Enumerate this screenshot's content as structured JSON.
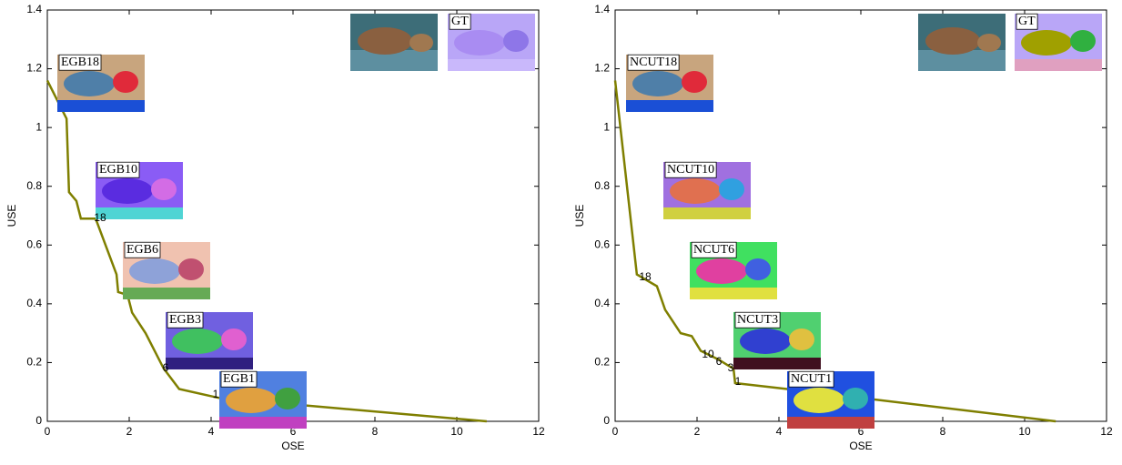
{
  "chart_data": [
    {
      "type": "line",
      "xlabel": "OSE",
      "ylabel": "USE",
      "xlim": [
        0,
        12
      ],
      "xticks": [
        0,
        2,
        4,
        6,
        8,
        10,
        12
      ],
      "ylim": [
        0,
        1.4
      ],
      "yticks": [
        0,
        0.2,
        0.4,
        0.6,
        0.8,
        1,
        1.2,
        1.4
      ],
      "x": [
        0,
        0.47,
        0.53,
        0.71,
        0.82,
        1.18,
        1.69,
        1.73,
        1.96,
        2.07,
        2.4,
        2.84,
        3.22,
        4.18,
        10.73
      ],
      "series": [
        {
          "color": "#7f7f00",
          "values": [
            1.16,
            1.03,
            0.78,
            0.75,
            0.69,
            0.69,
            0.5,
            0.44,
            0.43,
            0.37,
            0.3,
            0.18,
            0.11,
            0.08,
            0
          ]
        }
      ],
      "image_labels": [
        "GT",
        "EGB18",
        "EGB10",
        "EGB6",
        "EGB3",
        "EGB1"
      ],
      "point_labels": [
        "18",
        "6",
        "1"
      ]
    },
    {
      "type": "line",
      "xlabel": "OSE",
      "ylabel": "USE",
      "xlim": [
        0,
        12
      ],
      "xticks": [
        0,
        2,
        4,
        6,
        8,
        10,
        12
      ],
      "ylim": [
        0,
        1.4
      ],
      "yticks": [
        0,
        0.2,
        0.4,
        0.6,
        0.8,
        1,
        1.2,
        1.4
      ],
      "x": [
        0,
        0.53,
        1.02,
        1.22,
        1.6,
        1.87,
        2.09,
        2.53,
        2.76,
        2.89,
        2.93,
        4.2,
        10.76
      ],
      "series": [
        {
          "color": "#7f7f00",
          "values": [
            1.16,
            0.5,
            0.46,
            0.38,
            0.3,
            0.29,
            0.24,
            0.21,
            0.19,
            0.18,
            0.13,
            0.11,
            0
          ]
        }
      ],
      "image_labels": [
        "GT",
        "NCUT18",
        "NCUT10",
        "NCUT6",
        "NCUT3",
        "NCUT1"
      ],
      "point_labels": [
        "18",
        "10",
        "6",
        "3",
        "1"
      ]
    }
  ]
}
